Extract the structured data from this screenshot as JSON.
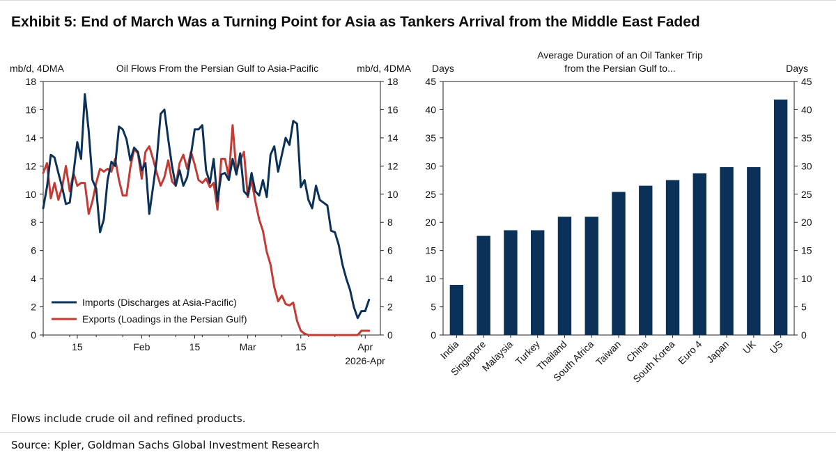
{
  "title": "Exhibit 5: End of March Was a Turning Point for Asia as Tankers Arrival from the Middle East Faded",
  "note": "Flows include crude oil and refined products.",
  "source": "Source: Kpler, Goldman Sachs Global Investment Research",
  "colors": {
    "imports": "#0b3158",
    "exports": "#c43b35",
    "bars": "#0b3158"
  },
  "chart_data": [
    {
      "type": "line",
      "title": "Oil Flows From the Persian Gulf to Asia-Pacific",
      "ylabel_left": "mb/d, 4DMA",
      "ylabel_right": "mb/d, 4DMA",
      "ylim": [
        0,
        18
      ],
      "yticks": [
        0,
        2,
        4,
        6,
        8,
        10,
        12,
        14,
        16,
        18
      ],
      "xlim": [
        "2026-01-06",
        "2026-04-05"
      ],
      "xticks": [
        {
          "date": "2026-01-15",
          "label": "15"
        },
        {
          "date": "2026-02-01",
          "label": "Feb"
        },
        {
          "date": "2026-02-15",
          "label": "15"
        },
        {
          "date": "2026-03-01",
          "label": "Mar"
        },
        {
          "date": "2026-03-15",
          "label": "15"
        },
        {
          "date": "2026-04-01",
          "label": "Apr"
        }
      ],
      "xlabel_sub": "2026-Apr",
      "legend_position": "bottom-left",
      "series": [
        {
          "name": "Imports (Discharges at Asia-Pacific)",
          "points": [
            [
              "2026-01-06",
              9.0
            ],
            [
              "2026-01-07",
              10.5
            ],
            [
              "2026-01-08",
              12.8
            ],
            [
              "2026-01-09",
              12.6
            ],
            [
              "2026-01-10",
              11.5
            ],
            [
              "2026-01-11",
              10.5
            ],
            [
              "2026-01-12",
              9.3
            ],
            [
              "2026-01-13",
              9.4
            ],
            [
              "2026-01-14",
              11.5
            ],
            [
              "2026-01-15",
              13.7
            ],
            [
              "2026-01-16",
              12.5
            ],
            [
              "2026-01-17",
              17.1
            ],
            [
              "2026-01-18",
              14.5
            ],
            [
              "2026-01-19",
              11.0
            ],
            [
              "2026-01-20",
              10.4
            ],
            [
              "2026-01-21",
              7.3
            ],
            [
              "2026-01-22",
              8.2
            ],
            [
              "2026-01-23",
              11.0
            ],
            [
              "2026-01-24",
              12.3
            ],
            [
              "2026-01-25",
              12.0
            ],
            [
              "2026-01-26",
              14.8
            ],
            [
              "2026-01-27",
              14.6
            ],
            [
              "2026-01-28",
              13.9
            ],
            [
              "2026-01-29",
              12.4
            ],
            [
              "2026-01-30",
              13.3
            ],
            [
              "2026-01-31",
              13.0
            ],
            [
              "2026-02-01",
              11.7
            ],
            [
              "2026-02-02",
              12.2
            ],
            [
              "2026-02-03",
              8.6
            ],
            [
              "2026-02-04",
              10.5
            ],
            [
              "2026-02-05",
              12.5
            ],
            [
              "2026-02-06",
              15.7
            ],
            [
              "2026-02-07",
              16.0
            ],
            [
              "2026-02-08",
              13.9
            ],
            [
              "2026-02-09",
              12.0
            ],
            [
              "2026-02-10",
              10.6
            ],
            [
              "2026-02-11",
              11.7
            ],
            [
              "2026-02-12",
              10.6
            ],
            [
              "2026-02-13",
              11.2
            ],
            [
              "2026-02-14",
              12.8
            ],
            [
              "2026-02-15",
              14.6
            ],
            [
              "2026-02-16",
              14.6
            ],
            [
              "2026-02-17",
              14.9
            ],
            [
              "2026-02-18",
              11.7
            ],
            [
              "2026-02-19",
              10.8
            ],
            [
              "2026-02-20",
              12.5
            ],
            [
              "2026-02-21",
              9.5
            ],
            [
              "2026-02-22",
              11.4
            ],
            [
              "2026-02-23",
              11.5
            ],
            [
              "2026-02-24",
              11.0
            ],
            [
              "2026-02-25",
              12.5
            ],
            [
              "2026-02-26",
              11.4
            ],
            [
              "2026-02-27",
              12.9
            ],
            [
              "2026-02-28",
              10.2
            ],
            [
              "2026-03-01",
              9.9
            ],
            [
              "2026-03-02",
              11.5
            ],
            [
              "2026-03-03",
              10.2
            ],
            [
              "2026-03-04",
              9.9
            ],
            [
              "2026-03-05",
              11.0
            ],
            [
              "2026-03-06",
              9.8
            ],
            [
              "2026-03-07",
              12.8
            ],
            [
              "2026-03-08",
              13.4
            ],
            [
              "2026-03-09",
              11.6
            ],
            [
              "2026-03-10",
              12.8
            ],
            [
              "2026-03-11",
              14.0
            ],
            [
              "2026-03-12",
              13.5
            ],
            [
              "2026-03-13",
              15.2
            ],
            [
              "2026-03-14",
              15.0
            ],
            [
              "2026-03-15",
              10.5
            ],
            [
              "2026-03-16",
              11.0
            ],
            [
              "2026-03-17",
              9.6
            ],
            [
              "2026-03-18",
              9.0
            ],
            [
              "2026-03-19",
              10.6
            ],
            [
              "2026-03-20",
              9.6
            ],
            [
              "2026-03-21",
              9.4
            ],
            [
              "2026-03-22",
              9.2
            ],
            [
              "2026-03-23",
              7.4
            ],
            [
              "2026-03-24",
              7.3
            ],
            [
              "2026-03-25",
              6.4
            ],
            [
              "2026-03-26",
              5.0
            ],
            [
              "2026-03-27",
              4.0
            ],
            [
              "2026-03-28",
              3.2
            ],
            [
              "2026-03-29",
              2.0
            ],
            [
              "2026-03-30",
              1.2
            ],
            [
              "2026-03-31",
              1.7
            ],
            [
              "2026-04-01",
              1.7
            ],
            [
              "2026-04-02",
              2.5
            ]
          ]
        },
        {
          "name": "Exports (Loadings in the Persian Gulf)",
          "points": [
            [
              "2026-01-06",
              11.5
            ],
            [
              "2026-01-07",
              12.2
            ],
            [
              "2026-01-08",
              9.7
            ],
            [
              "2026-01-09",
              10.8
            ],
            [
              "2026-01-10",
              9.6
            ],
            [
              "2026-01-11",
              10.5
            ],
            [
              "2026-01-12",
              12.0
            ],
            [
              "2026-01-13",
              10.2
            ],
            [
              "2026-01-14",
              11.5
            ],
            [
              "2026-01-15",
              10.6
            ],
            [
              "2026-01-16",
              10.8
            ],
            [
              "2026-01-17",
              10.8
            ],
            [
              "2026-01-18",
              8.6
            ],
            [
              "2026-01-19",
              9.5
            ],
            [
              "2026-01-20",
              10.8
            ],
            [
              "2026-01-21",
              11.8
            ],
            [
              "2026-01-22",
              11.6
            ],
            [
              "2026-01-23",
              11.8
            ],
            [
              "2026-01-24",
              11.6
            ],
            [
              "2026-01-25",
              12.5
            ],
            [
              "2026-01-26",
              11.0
            ],
            [
              "2026-01-27",
              9.9
            ],
            [
              "2026-01-28",
              9.9
            ],
            [
              "2026-01-29",
              11.9
            ],
            [
              "2026-01-30",
              13.2
            ],
            [
              "2026-01-31",
              12.9
            ],
            [
              "2026-02-01",
              11.1
            ],
            [
              "2026-02-02",
              13.0
            ],
            [
              "2026-02-03",
              13.4
            ],
            [
              "2026-02-04",
              12.5
            ],
            [
              "2026-02-05",
              11.5
            ],
            [
              "2026-02-06",
              10.6
            ],
            [
              "2026-02-07",
              11.2
            ],
            [
              "2026-02-08",
              12.4
            ],
            [
              "2026-02-09",
              10.9
            ],
            [
              "2026-02-10",
              10.6
            ],
            [
              "2026-02-11",
              12.2
            ],
            [
              "2026-02-12",
              12.8
            ],
            [
              "2026-02-13",
              11.8
            ],
            [
              "2026-02-14",
              13.0
            ],
            [
              "2026-02-15",
              12.1
            ],
            [
              "2026-02-16",
              11.0
            ],
            [
              "2026-02-17",
              10.8
            ],
            [
              "2026-02-18",
              11.1
            ],
            [
              "2026-02-19",
              10.5
            ],
            [
              "2026-02-20",
              10.8
            ],
            [
              "2026-02-21",
              8.9
            ],
            [
              "2026-02-22",
              12.5
            ],
            [
              "2026-02-23",
              12.5
            ],
            [
              "2026-02-24",
              11.2
            ],
            [
              "2026-02-25",
              14.9
            ],
            [
              "2026-02-26",
              11.6
            ],
            [
              "2026-02-27",
              12.4
            ],
            [
              "2026-02-28",
              13.0
            ],
            [
              "2026-03-01",
              9.8
            ],
            [
              "2026-03-02",
              11.0
            ],
            [
              "2026-03-03",
              9.5
            ],
            [
              "2026-03-04",
              8.2
            ],
            [
              "2026-03-05",
              7.4
            ],
            [
              "2026-03-06",
              5.9
            ],
            [
              "2026-03-07",
              5.0
            ],
            [
              "2026-03-08",
              3.4
            ],
            [
              "2026-03-09",
              2.4
            ],
            [
              "2026-03-10",
              2.8
            ],
            [
              "2026-03-11",
              2.2
            ],
            [
              "2026-03-12",
              2.1
            ],
            [
              "2026-03-13",
              2.3
            ],
            [
              "2026-03-14",
              1.0
            ],
            [
              "2026-03-15",
              0.3
            ],
            [
              "2026-03-16",
              0.1
            ],
            [
              "2026-03-17",
              0.0
            ],
            [
              "2026-03-18",
              0.0
            ],
            [
              "2026-03-20",
              0.0
            ],
            [
              "2026-03-25",
              0.0
            ],
            [
              "2026-03-30",
              0.0
            ],
            [
              "2026-03-31",
              0.3
            ],
            [
              "2026-04-01",
              0.3
            ],
            [
              "2026-04-02",
              0.3
            ]
          ]
        }
      ]
    },
    {
      "type": "bar",
      "title": "Average Duration of an Oil Tanker Trip from the Persian Gulf to...",
      "title_lines": [
        "Average Duration of an Oil Tanker Trip",
        "from the Persian Gulf to..."
      ],
      "ylabel_left": "Days",
      "ylabel_right": "Days",
      "ylim": [
        0,
        45
      ],
      "yticks": [
        0,
        5,
        10,
        15,
        20,
        25,
        30,
        35,
        40,
        45
      ],
      "categories": [
        "India",
        "Singapore",
        "Malaysia",
        "Turkey",
        "Thailand",
        "South Africa",
        "Taiwan",
        "China",
        "South Korea",
        "Euro 4",
        "Japan",
        "UK",
        "US"
      ],
      "values": [
        8.9,
        17.6,
        18.6,
        18.6,
        21.0,
        21.0,
        25.4,
        26.5,
        27.5,
        28.7,
        29.8,
        29.8,
        41.8
      ]
    }
  ]
}
